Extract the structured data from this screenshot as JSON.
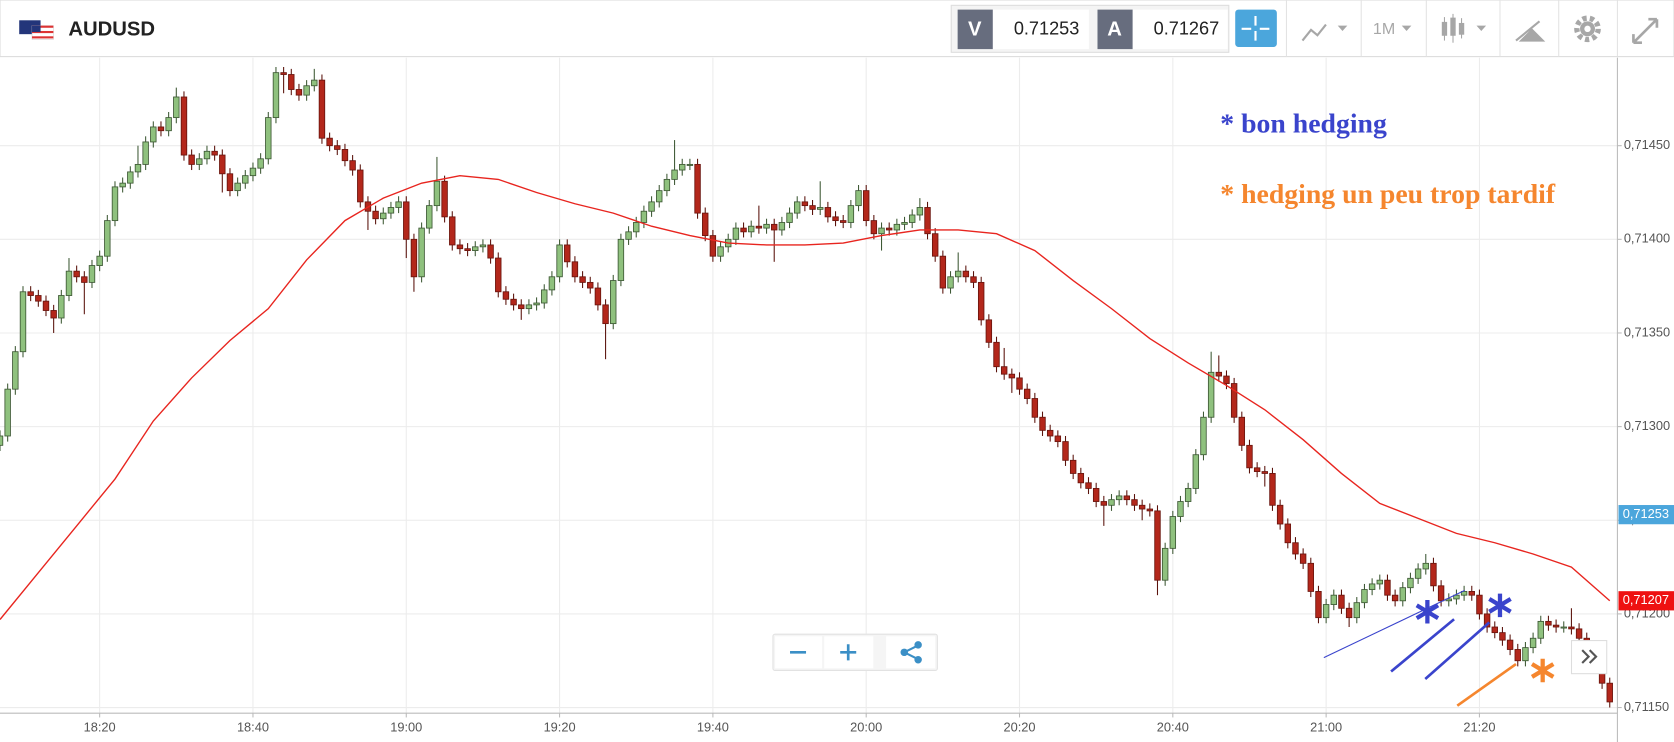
{
  "header": {
    "symbol": "AUDUSD",
    "sell_label": "V",
    "sell_price": 0.71253,
    "buy_label": "A",
    "buy_price": 0.71267,
    "timeframe": "1M"
  },
  "chart_data": {
    "type": "candlestick",
    "x": [
      "18:07",
      "18:08",
      "18:09",
      "18:10",
      "18:11",
      "18:12",
      "18:13",
      "18:14",
      "18:15",
      "18:16",
      "18:17",
      "18:18",
      "18:19",
      "18:20",
      "18:21",
      "18:22",
      "18:23",
      "18:24",
      "18:25",
      "18:26",
      "18:27",
      "18:28",
      "18:29",
      "18:30",
      "18:31",
      "18:32",
      "18:33",
      "18:34",
      "18:35",
      "18:36",
      "18:37",
      "18:38",
      "18:39",
      "18:40",
      "18:41",
      "18:42",
      "18:43",
      "18:44",
      "18:45",
      "18:46",
      "18:47",
      "18:48",
      "18:49",
      "18:50",
      "18:51",
      "18:52",
      "18:53",
      "18:54",
      "18:55",
      "18:56",
      "18:57",
      "18:58",
      "18:59",
      "19:00",
      "19:01",
      "19:02",
      "19:03",
      "19:04",
      "19:05",
      "19:06",
      "19:07",
      "19:08",
      "19:09",
      "19:10",
      "19:11",
      "19:12",
      "19:13",
      "19:14",
      "19:15",
      "19:16",
      "19:17",
      "19:18",
      "19:19",
      "19:20",
      "19:21",
      "19:22",
      "19:23",
      "19:24",
      "19:25",
      "19:26",
      "19:27",
      "19:28",
      "19:29",
      "19:30",
      "19:31",
      "19:32",
      "19:33",
      "19:34",
      "19:35",
      "19:36",
      "19:37",
      "19:38",
      "19:39",
      "19:40",
      "19:41",
      "19:42",
      "19:43",
      "19:44",
      "19:45",
      "19:46",
      "19:47",
      "19:48",
      "19:49",
      "19:50",
      "19:51",
      "19:52",
      "19:53",
      "19:54",
      "19:55",
      "19:56",
      "19:57",
      "19:58",
      "19:59",
      "20:00",
      "20:01",
      "20:02",
      "20:03",
      "20:04",
      "20:05",
      "20:06",
      "20:07",
      "20:08",
      "20:09",
      "20:10",
      "20:11",
      "20:12",
      "20:13",
      "20:14",
      "20:15",
      "20:16",
      "20:17",
      "20:18",
      "20:19",
      "20:20",
      "20:21",
      "20:22",
      "20:23",
      "20:24",
      "20:25",
      "20:26",
      "20:27",
      "20:28",
      "20:29",
      "20:30",
      "20:31",
      "20:32",
      "20:33",
      "20:34",
      "20:35",
      "20:36",
      "20:37",
      "20:38",
      "20:39",
      "20:40",
      "20:41",
      "20:42",
      "20:43",
      "20:44",
      "20:45",
      "20:46",
      "20:47",
      "20:48",
      "20:49",
      "20:50",
      "20:51",
      "20:52",
      "20:53",
      "20:54",
      "20:55",
      "20:56",
      "20:57",
      "20:58",
      "20:59",
      "21:00",
      "21:01",
      "21:02",
      "21:03",
      "21:04",
      "21:05",
      "21:06",
      "21:07",
      "21:08",
      "21:09",
      "21:10",
      "21:11",
      "21:12",
      "21:13",
      "21:14",
      "21:15",
      "21:16",
      "21:17",
      "21:18",
      "21:19",
      "21:20",
      "21:21",
      "21:22",
      "21:23",
      "21:24",
      "21:25",
      "21:26",
      "21:27",
      "21:28",
      "21:29",
      "21:30",
      "21:31",
      "21:32",
      "21:33",
      "21:34",
      "21:35",
      "21:36",
      "21:37"
    ],
    "open": [
      0.7129,
      0.71295,
      0.7132,
      0.7134,
      0.71372,
      0.7137,
      0.71367,
      0.71362,
      0.71358,
      0.7137,
      0.71383,
      0.7138,
      0.71377,
      0.71386,
      0.71391,
      0.7141,
      0.71428,
      0.7143,
      0.71436,
      0.7144,
      0.71452,
      0.7146,
      0.71458,
      0.71465,
      0.71476,
      0.71445,
      0.7144,
      0.71443,
      0.71447,
      0.71445,
      0.71435,
      0.71426,
      0.7143,
      0.71434,
      0.71438,
      0.71443,
      0.71465,
      0.71489,
      0.71488,
      0.7148,
      0.71477,
      0.71482,
      0.71485,
      0.71454,
      0.7145,
      0.71448,
      0.71442,
      0.71437,
      0.7142,
      0.71415,
      0.71411,
      0.71414,
      0.71417,
      0.7142,
      0.714,
      0.7138,
      0.71406,
      0.71418,
      0.71431,
      0.71412,
      0.71397,
      0.71395,
      0.71394,
      0.71396,
      0.71397,
      0.7139,
      0.71372,
      0.71368,
      0.71365,
      0.71363,
      0.71365,
      0.71366,
      0.71373,
      0.7138,
      0.71397,
      0.71388,
      0.7138,
      0.71377,
      0.71374,
      0.71365,
      0.71355,
      0.71378,
      0.714,
      0.71404,
      0.71409,
      0.71415,
      0.7142,
      0.71426,
      0.71432,
      0.71437,
      0.7144,
      0.7144,
      0.71414,
      0.71402,
      0.71391,
      0.71396,
      0.714,
      0.71406,
      0.71404,
      0.71407,
      0.71406,
      0.71408,
      0.71405,
      0.71409,
      0.71414,
      0.7142,
      0.71418,
      0.71416,
      0.71417,
      0.71412,
      0.7141,
      0.71409,
      0.71418,
      0.71426,
      0.7141,
      0.71403,
      0.71406,
      0.71405,
      0.71408,
      0.71409,
      0.71413,
      0.71417,
      0.71403,
      0.71391,
      0.71374,
      0.7138,
      0.71383,
      0.7138,
      0.71377,
      0.71357,
      0.71345,
      0.71332,
      0.71328,
      0.71326,
      0.7132,
      0.71315,
      0.71305,
      0.71298,
      0.71295,
      0.71292,
      0.71282,
      0.71275,
      0.7127,
      0.71267,
      0.7126,
      0.71258,
      0.71261,
      0.71263,
      0.71261,
      0.71258,
      0.71256,
      0.71255,
      0.71218,
      0.71235,
      0.71252,
      0.7126,
      0.71267,
      0.71285,
      0.71305,
      0.71329,
      0.71327,
      0.71323,
      0.71305,
      0.7129,
      0.71278,
      0.71276,
      0.71275,
      0.71258,
      0.71248,
      0.71238,
      0.71232,
      0.71227,
      0.71212,
      0.71198,
      0.71205,
      0.7121,
      0.71203,
      0.71198,
      0.71206,
      0.71213,
      0.71216,
      0.71218,
      0.7121,
      0.71207,
      0.71214,
      0.71219,
      0.71224,
      0.71227,
      0.71215,
      0.71207,
      0.71208,
      0.7121,
      0.71212,
      0.7121,
      0.712,
      0.71193,
      0.7119,
      0.71186,
      0.71181,
      0.71175,
      0.71182,
      0.71187,
      0.71196,
      0.71194,
      0.71193,
      0.71193,
      0.71192,
      0.71187,
      0.7118,
      0.71173,
      0.71163
    ],
    "high": [
      0.71298,
      0.71323,
      0.71343,
      0.71375,
      0.71375,
      0.71373,
      0.7137,
      0.71365,
      0.71373,
      0.7139,
      0.71386,
      0.71383,
      0.71389,
      0.71394,
      0.71413,
      0.71431,
      0.71433,
      0.71439,
      0.7145,
      0.71455,
      0.71463,
      0.71463,
      0.71468,
      0.71481,
      0.71479,
      0.71448,
      0.71446,
      0.7145,
      0.7145,
      0.71448,
      0.71438,
      0.71433,
      0.71437,
      0.71441,
      0.71446,
      0.71468,
      0.71492,
      0.71492,
      0.71491,
      0.71483,
      0.71485,
      0.71491,
      0.71488,
      0.71457,
      0.71453,
      0.71451,
      0.71445,
      0.7144,
      0.71423,
      0.71418,
      0.71417,
      0.7142,
      0.71423,
      0.71423,
      0.71403,
      0.71409,
      0.71421,
      0.71444,
      0.71434,
      0.71415,
      0.714,
      0.71398,
      0.71399,
      0.714,
      0.714,
      0.71393,
      0.71375,
      0.71371,
      0.71368,
      0.71368,
      0.71369,
      0.71376,
      0.71383,
      0.714,
      0.714,
      0.71391,
      0.71383,
      0.7138,
      0.71377,
      0.71368,
      0.71381,
      0.71403,
      0.71407,
      0.71412,
      0.71418,
      0.71423,
      0.71429,
      0.71435,
      0.71453,
      0.71443,
      0.71443,
      0.71443,
      0.71417,
      0.71405,
      0.71399,
      0.71403,
      0.71409,
      0.71409,
      0.7141,
      0.71418,
      0.71411,
      0.71411,
      0.71412,
      0.71417,
      0.71423,
      0.71423,
      0.71421,
      0.71431,
      0.7142,
      0.71415,
      0.71413,
      0.71421,
      0.71429,
      0.71429,
      0.71413,
      0.71409,
      0.71409,
      0.71411,
      0.71412,
      0.71416,
      0.71422,
      0.7142,
      0.71406,
      0.71394,
      0.71383,
      0.71393,
      0.71386,
      0.71383,
      0.7138,
      0.7136,
      0.71348,
      0.71342,
      0.71331,
      0.71329,
      0.71323,
      0.71318,
      0.71308,
      0.71301,
      0.71298,
      0.71295,
      0.71285,
      0.71278,
      0.71273,
      0.7127,
      0.71263,
      0.71264,
      0.71266,
      0.71266,
      0.71264,
      0.71261,
      0.71259,
      0.71258,
      0.71238,
      0.71255,
      0.71263,
      0.7127,
      0.71288,
      0.71308,
      0.7134,
      0.71338,
      0.7133,
      0.71326,
      0.71308,
      0.71293,
      0.71281,
      0.71279,
      0.71278,
      0.71261,
      0.71251,
      0.71241,
      0.71235,
      0.7123,
      0.71215,
      0.71208,
      0.71213,
      0.71213,
      0.71206,
      0.71209,
      0.71216,
      0.71219,
      0.71221,
      0.71221,
      0.71213,
      0.71217,
      0.71222,
      0.71227,
      0.71232,
      0.7123,
      0.71218,
      0.71211,
      0.71213,
      0.71215,
      0.71215,
      0.71213,
      0.71203,
      0.71196,
      0.71193,
      0.71189,
      0.71184,
      0.71185,
      0.7119,
      0.71199,
      0.71199,
      0.71197,
      0.71196,
      0.71203,
      0.71195,
      0.7119,
      0.71183,
      0.71176,
      0.71166
    ],
    "low": [
      0.71287,
      0.71292,
      0.71317,
      0.71337,
      0.71367,
      0.71364,
      0.71359,
      0.7135,
      0.71355,
      0.71367,
      0.71377,
      0.7136,
      0.71374,
      0.71383,
      0.71388,
      0.71407,
      0.71425,
      0.71427,
      0.71433,
      0.71437,
      0.71449,
      0.71455,
      0.71455,
      0.71462,
      0.71442,
      0.71437,
      0.71437,
      0.7144,
      0.71442,
      0.71425,
      0.71423,
      0.71423,
      0.71427,
      0.71431,
      0.71435,
      0.7144,
      0.71462,
      0.71478,
      0.71477,
      0.71474,
      0.71474,
      0.71479,
      0.71451,
      0.71447,
      0.71445,
      0.71439,
      0.71434,
      0.71417,
      0.71405,
      0.71408,
      0.71408,
      0.71411,
      0.71414,
      0.7139,
      0.71372,
      0.71377,
      0.71403,
      0.71415,
      0.71409,
      0.71394,
      0.71392,
      0.71391,
      0.71391,
      0.71393,
      0.71387,
      0.71369,
      0.71365,
      0.71362,
      0.71357,
      0.7136,
      0.71362,
      0.71363,
      0.7137,
      0.71377,
      0.71385,
      0.71377,
      0.71374,
      0.71371,
      0.71362,
      0.71336,
      0.71352,
      0.71375,
      0.71397,
      0.71401,
      0.71406,
      0.71412,
      0.71417,
      0.71423,
      0.71429,
      0.71434,
      0.71437,
      0.71411,
      0.71399,
      0.71388,
      0.71388,
      0.71393,
      0.71397,
      0.71401,
      0.71401,
      0.71403,
      0.71403,
      0.71388,
      0.71402,
      0.71406,
      0.71411,
      0.71415,
      0.71413,
      0.71413,
      0.71409,
      0.71407,
      0.71406,
      0.71406,
      0.71415,
      0.71407,
      0.714,
      0.71394,
      0.71402,
      0.71402,
      0.71405,
      0.71406,
      0.7141,
      0.714,
      0.71388,
      0.71371,
      0.71371,
      0.71377,
      0.71377,
      0.71374,
      0.71354,
      0.71342,
      0.71329,
      0.71325,
      0.71318,
      0.71317,
      0.71312,
      0.71302,
      0.71295,
      0.71292,
      0.71289,
      0.71279,
      0.71272,
      0.71267,
      0.71264,
      0.71257,
      0.71247,
      0.71255,
      0.71258,
      0.71258,
      0.71255,
      0.7125,
      0.71252,
      0.7121,
      0.71215,
      0.71232,
      0.71249,
      0.71257,
      0.71264,
      0.71282,
      0.71302,
      0.71324,
      0.7132,
      0.71302,
      0.71287,
      0.71275,
      0.71273,
      0.71268,
      0.71255,
      0.71245,
      0.71235,
      0.71229,
      0.71224,
      0.71209,
      0.71195,
      0.71195,
      0.71202,
      0.712,
      0.71193,
      0.71195,
      0.71203,
      0.7121,
      0.71213,
      0.71207,
      0.71204,
      0.71204,
      0.71211,
      0.71216,
      0.71221,
      0.71212,
      0.71204,
      0.71204,
      0.71205,
      0.71207,
      0.71207,
      0.71197,
      0.7119,
      0.71187,
      0.71183,
      0.71178,
      0.71172,
      0.71172,
      0.71179,
      0.71184,
      0.71191,
      0.7119,
      0.7119,
      0.71189,
      0.71184,
      0.71177,
      0.7117,
      0.7116,
      0.7115
    ],
    "close": [
      0.71295,
      0.7132,
      0.7134,
      0.71372,
      0.7137,
      0.71367,
      0.71362,
      0.71358,
      0.7137,
      0.71383,
      0.7138,
      0.71377,
      0.71386,
      0.71391,
      0.7141,
      0.71428,
      0.7143,
      0.71436,
      0.7144,
      0.71452,
      0.7146,
      0.71458,
      0.71465,
      0.71476,
      0.71445,
      0.7144,
      0.71443,
      0.71447,
      0.71445,
      0.71435,
      0.71426,
      0.7143,
      0.71434,
      0.71438,
      0.71443,
      0.71465,
      0.71489,
      0.71488,
      0.7148,
      0.71477,
      0.71482,
      0.71485,
      0.71454,
      0.7145,
      0.71448,
      0.71442,
      0.71437,
      0.7142,
      0.71415,
      0.71411,
      0.71414,
      0.71417,
      0.7142,
      0.714,
      0.7138,
      0.71406,
      0.71418,
      0.71431,
      0.71412,
      0.71397,
      0.71395,
      0.71394,
      0.71396,
      0.71397,
      0.7139,
      0.71372,
      0.71368,
      0.71365,
      0.71363,
      0.71365,
      0.71366,
      0.71373,
      0.7138,
      0.71397,
      0.71388,
      0.7138,
      0.71377,
      0.71374,
      0.71365,
      0.71355,
      0.71378,
      0.714,
      0.71404,
      0.71409,
      0.71415,
      0.7142,
      0.71426,
      0.71432,
      0.71437,
      0.7144,
      0.7144,
      0.71414,
      0.71402,
      0.71391,
      0.71396,
      0.714,
      0.71406,
      0.71404,
      0.71407,
      0.71406,
      0.71408,
      0.71405,
      0.71409,
      0.71414,
      0.7142,
      0.71418,
      0.71416,
      0.71417,
      0.71412,
      0.7141,
      0.71409,
      0.71418,
      0.71426,
      0.7141,
      0.71403,
      0.71406,
      0.71405,
      0.71408,
      0.71409,
      0.71413,
      0.71417,
      0.71403,
      0.71391,
      0.71374,
      0.7138,
      0.71383,
      0.7138,
      0.71377,
      0.71357,
      0.71345,
      0.71332,
      0.71328,
      0.71326,
      0.7132,
      0.71315,
      0.71305,
      0.71298,
      0.71295,
      0.71292,
      0.71282,
      0.71275,
      0.7127,
      0.71267,
      0.7126,
      0.71258,
      0.71261,
      0.71263,
      0.71261,
      0.71258,
      0.71256,
      0.71255,
      0.71218,
      0.71235,
      0.71252,
      0.7126,
      0.71267,
      0.71285,
      0.71305,
      0.71329,
      0.71327,
      0.71323,
      0.71305,
      0.7129,
      0.71278,
      0.71276,
      0.71275,
      0.71258,
      0.71248,
      0.71238,
      0.71232,
      0.71227,
      0.71212,
      0.71198,
      0.71205,
      0.7121,
      0.71203,
      0.71198,
      0.71206,
      0.71213,
      0.71216,
      0.71218,
      0.7121,
      0.71207,
      0.71214,
      0.71219,
      0.71224,
      0.71227,
      0.71215,
      0.71207,
      0.71208,
      0.7121,
      0.71212,
      0.7121,
      0.712,
      0.71193,
      0.7119,
      0.71186,
      0.71181,
      0.71175,
      0.71182,
      0.71187,
      0.71196,
      0.71194,
      0.71193,
      0.71193,
      0.71192,
      0.71187,
      0.7118,
      0.71173,
      0.71163,
      0.71153
    ],
    "up_color": "#8fc17e",
    "down_color": "#b3271b",
    "overlays": [
      {
        "type": "line",
        "color": "#e8251f",
        "x": [
          "18:07",
          "18:12",
          "18:17",
          "18:22",
          "18:27",
          "18:32",
          "18:37",
          "18:42",
          "18:47",
          "18:52",
          "18:57",
          "19:02",
          "19:07",
          "19:12",
          "19:17",
          "19:22",
          "19:27",
          "19:32",
          "19:37",
          "19:42",
          "19:47",
          "19:52",
          "19:57",
          "20:02",
          "20:07",
          "20:12",
          "20:17",
          "20:22",
          "20:27",
          "20:32",
          "20:37",
          "20:42",
          "20:47",
          "20:52",
          "20:57",
          "21:02",
          "21:07",
          "21:12",
          "21:17",
          "21:22",
          "21:27",
          "21:32",
          "21:37"
        ],
        "values": [
          0.71197,
          0.71222,
          0.71247,
          0.71272,
          0.71303,
          0.71326,
          0.71346,
          0.71363,
          0.71389,
          0.7141,
          0.71422,
          0.7143,
          0.71434,
          0.71432,
          0.71425,
          0.71419,
          0.71414,
          0.71407,
          0.71402,
          0.71398,
          0.71397,
          0.71397,
          0.71398,
          0.71402,
          0.71405,
          0.71405,
          0.71403,
          0.71394,
          0.71378,
          0.71363,
          0.71347,
          0.71334,
          0.71322,
          0.71309,
          0.71293,
          0.71275,
          0.71259,
          0.71251,
          0.71243,
          0.71238,
          0.71232,
          0.71225,
          0.71207
        ]
      }
    ],
    "ylim": [
      0.71147,
      0.71497
    ],
    "yticks": [
      {
        "value": 0.7115,
        "label": "0,71150"
      },
      {
        "value": 0.712,
        "label": "0,71200"
      },
      {
        "value": 0.7125,
        "label": "0,71250"
      },
      {
        "value": 0.713,
        "label": "0,71300"
      },
      {
        "value": 0.7135,
        "label": "0,71350"
      },
      {
        "value": 0.714,
        "label": "0,71400"
      },
      {
        "value": 0.7145,
        "label": "0,71450"
      }
    ],
    "xlim": [
      "18:07",
      "21:38"
    ],
    "xticks": [
      "18:20",
      "18:40",
      "19:00",
      "19:20",
      "19:40",
      "20:00",
      "20:20",
      "20:40",
      "21:00",
      "21:20"
    ],
    "grid": true,
    "price_markers": [
      {
        "value": 0.71253,
        "label": "0,71253",
        "color": "#4ba6dc"
      },
      {
        "value": 0.71207,
        "label": "0,71207",
        "color": "#ee1111"
      }
    ],
    "annotations": [
      {
        "text": "* bon hedging",
        "color": "#3a44cc"
      },
      {
        "text": "* hedging un peu trop tardif",
        "color": "#f5862e"
      }
    ]
  }
}
